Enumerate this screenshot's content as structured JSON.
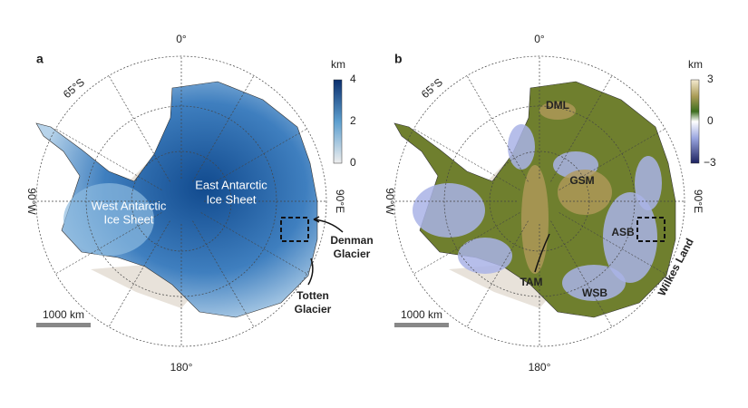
{
  "panels": [
    {
      "label": "a",
      "graticule": {
        "top": "0°",
        "left": "90°W",
        "right": "90°E",
        "bottom": "180°",
        "latitude": "65°S"
      },
      "colorbar": {
        "unit": "km",
        "ticks": [
          "4",
          "2",
          "0"
        ]
      },
      "scale_bar": "1000 km",
      "annotations": [
        {
          "lines": [
            "West Antarctic",
            "Ice Sheet"
          ]
        },
        {
          "lines": [
            "East Antarctic",
            "Ice Sheet"
          ]
        },
        {
          "lines": [
            "Denman",
            "Glacier"
          ]
        },
        {
          "lines": [
            "Totten",
            "Glacier"
          ]
        }
      ]
    },
    {
      "label": "b",
      "graticule": {
        "top": "0°",
        "left": "90°W",
        "right": "90°E",
        "bottom": "180°",
        "latitude": "65°S"
      },
      "colorbar": {
        "unit": "km",
        "ticks": [
          "3",
          "0",
          "−3"
        ]
      },
      "scale_bar": "1000 km",
      "annotations": [
        {
          "lines": [
            "DML"
          ]
        },
        {
          "lines": [
            "GSM"
          ]
        },
        {
          "lines": [
            "ASB"
          ]
        },
        {
          "lines": [
            "TAM"
          ]
        },
        {
          "lines": [
            "WSB"
          ]
        },
        {
          "lines": [
            "Wilkes Land"
          ]
        }
      ]
    }
  ]
}
